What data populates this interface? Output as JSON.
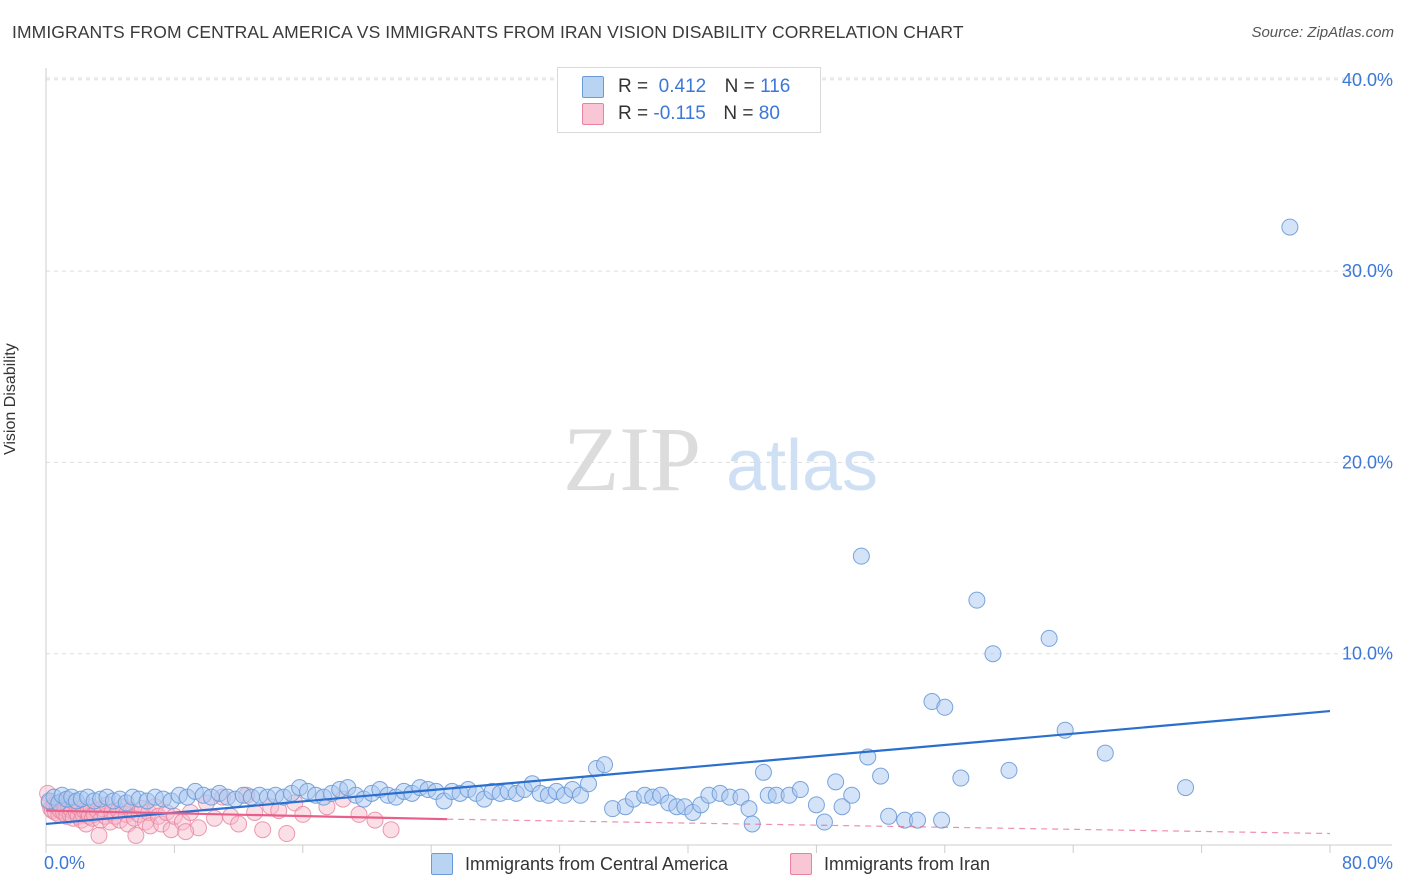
{
  "title": "IMMIGRANTS FROM CENTRAL AMERICA VS IMMIGRANTS FROM IRAN VISION DISABILITY CORRELATION CHART",
  "source": "Source: ZipAtlas.com",
  "watermark": {
    "zip": "ZIP",
    "atlas": "atlas"
  },
  "legend": {
    "r_label": "R =",
    "n_label": "N =",
    "series": [
      {
        "r": "0.412",
        "n": "116"
      },
      {
        "r": "-0.115",
        "n": "80"
      }
    ]
  },
  "colors": {
    "blue_fill": "#a9c8f0",
    "blue_stroke": "#6a9bd8",
    "blue_line": "#2a6fce",
    "pink_fill": "#f7b8ca",
    "pink_stroke": "#e8829f",
    "pink_line": "#e8608a",
    "tick_text": "#3b78d8",
    "grid": "#dddddd"
  },
  "chart_data": {
    "type": "scatter",
    "title": "IMMIGRANTS FROM CENTRAL AMERICA VS IMMIGRANTS FROM IRAN VISION DISABILITY CORRELATION CHART",
    "xlabel": "",
    "ylabel": "Vision Disability",
    "xlim": [
      0,
      80
    ],
    "ylim": [
      0,
      42
    ],
    "x_tick_labels": [
      "0.0%",
      "80.0%"
    ],
    "y_ticks": [
      10,
      20,
      30,
      40
    ],
    "y_tick_labels": [
      "10.0%",
      "20.0%",
      "30.0%",
      "40.0%"
    ],
    "legend_position": "top-center",
    "series": [
      {
        "name": "Immigrants from Central America",
        "r": 0.412,
        "n": 116,
        "trend": {
          "x": [
            0,
            80
          ],
          "y": [
            1.1,
            7.0
          ],
          "dashed_after": null
        },
        "points": [
          [
            0.2,
            2.3
          ],
          [
            0.5,
            2.5
          ],
          [
            0.8,
            2.2
          ],
          [
            1.0,
            2.6
          ],
          [
            1.3,
            2.4
          ],
          [
            1.6,
            2.5
          ],
          [
            1.9,
            2.3
          ],
          [
            2.2,
            2.4
          ],
          [
            2.6,
            2.5
          ],
          [
            3.0,
            2.3
          ],
          [
            3.4,
            2.4
          ],
          [
            3.8,
            2.5
          ],
          [
            4.2,
            2.3
          ],
          [
            4.6,
            2.4
          ],
          [
            5.0,
            2.2
          ],
          [
            5.4,
            2.5
          ],
          [
            5.8,
            2.4
          ],
          [
            6.3,
            2.3
          ],
          [
            6.8,
            2.5
          ],
          [
            7.3,
            2.4
          ],
          [
            7.8,
            2.3
          ],
          [
            8.3,
            2.6
          ],
          [
            8.8,
            2.5
          ],
          [
            9.3,
            2.8
          ],
          [
            9.8,
            2.6
          ],
          [
            10.3,
            2.5
          ],
          [
            10.8,
            2.7
          ],
          [
            11.3,
            2.5
          ],
          [
            11.8,
            2.4
          ],
          [
            12.3,
            2.6
          ],
          [
            12.8,
            2.5
          ],
          [
            13.3,
            2.6
          ],
          [
            13.8,
            2.5
          ],
          [
            14.3,
            2.6
          ],
          [
            14.8,
            2.5
          ],
          [
            15.3,
            2.7
          ],
          [
            15.8,
            3.0
          ],
          [
            16.3,
            2.8
          ],
          [
            16.8,
            2.6
          ],
          [
            17.3,
            2.5
          ],
          [
            17.8,
            2.7
          ],
          [
            18.3,
            2.9
          ],
          [
            18.8,
            3.0
          ],
          [
            19.3,
            2.6
          ],
          [
            19.8,
            2.4
          ],
          [
            20.3,
            2.7
          ],
          [
            20.8,
            2.9
          ],
          [
            21.3,
            2.6
          ],
          [
            21.8,
            2.5
          ],
          [
            22.3,
            2.8
          ],
          [
            22.8,
            2.7
          ],
          [
            23.3,
            3.0
          ],
          [
            23.8,
            2.9
          ],
          [
            24.3,
            2.8
          ],
          [
            24.8,
            2.3
          ],
          [
            25.3,
            2.8
          ],
          [
            25.8,
            2.7
          ],
          [
            26.3,
            2.9
          ],
          [
            26.8,
            2.7
          ],
          [
            27.3,
            2.4
          ],
          [
            27.8,
            2.8
          ],
          [
            28.3,
            2.7
          ],
          [
            28.8,
            2.8
          ],
          [
            29.3,
            2.7
          ],
          [
            29.8,
            2.9
          ],
          [
            30.3,
            3.2
          ],
          [
            30.8,
            2.7
          ],
          [
            31.3,
            2.6
          ],
          [
            31.8,
            2.8
          ],
          [
            32.3,
            2.6
          ],
          [
            32.8,
            2.9
          ],
          [
            33.3,
            2.6
          ],
          [
            33.8,
            3.2
          ],
          [
            34.3,
            4.0
          ],
          [
            34.8,
            4.2
          ],
          [
            35.3,
            1.9
          ],
          [
            36.1,
            2.0
          ],
          [
            36.6,
            2.4
          ],
          [
            37.3,
            2.6
          ],
          [
            37.8,
            2.5
          ],
          [
            38.3,
            2.6
          ],
          [
            38.8,
            2.2
          ],
          [
            39.3,
            2.0
          ],
          [
            39.8,
            2.0
          ],
          [
            40.3,
            1.7
          ],
          [
            40.8,
            2.1
          ],
          [
            41.3,
            2.6
          ],
          [
            42.0,
            2.7
          ],
          [
            42.6,
            2.5
          ],
          [
            43.3,
            2.5
          ],
          [
            43.8,
            1.9
          ],
          [
            44.0,
            1.1
          ],
          [
            44.7,
            3.8
          ],
          [
            45.0,
            2.6
          ],
          [
            45.5,
            2.6
          ],
          [
            46.3,
            2.6
          ],
          [
            47.0,
            2.9
          ],
          [
            48.0,
            2.1
          ],
          [
            48.5,
            1.2
          ],
          [
            49.2,
            3.3
          ],
          [
            49.6,
            2.0
          ],
          [
            50.2,
            2.6
          ],
          [
            50.8,
            15.1
          ],
          [
            51.2,
            4.6
          ],
          [
            52.0,
            3.6
          ],
          [
            52.5,
            1.5
          ],
          [
            53.5,
            1.3
          ],
          [
            54.3,
            1.3
          ],
          [
            55.2,
            7.5
          ],
          [
            56.0,
            7.2
          ],
          [
            57.0,
            3.5
          ],
          [
            58.0,
            12.8
          ],
          [
            59.0,
            10.0
          ],
          [
            60.0,
            3.9
          ],
          [
            62.5,
            10.8
          ],
          [
            63.5,
            6.0
          ],
          [
            66.0,
            4.8
          ],
          [
            71.0,
            3.0
          ],
          [
            77.5,
            32.3
          ],
          [
            55.8,
            1.3
          ]
        ]
      },
      {
        "name": "Immigrants from Iran",
        "r": -0.115,
        "n": 80,
        "trend": {
          "x": [
            0,
            25,
            80
          ],
          "y": [
            1.8,
            1.35,
            0.6
          ],
          "dashed_after": 25
        },
        "points": [
          [
            0.1,
            2.7
          ],
          [
            0.2,
            2.2
          ],
          [
            0.3,
            1.9
          ],
          [
            0.4,
            1.8
          ],
          [
            0.5,
            2.1
          ],
          [
            0.6,
            1.7
          ],
          [
            0.7,
            2.0
          ],
          [
            0.8,
            1.6
          ],
          [
            0.9,
            1.8
          ],
          [
            1.0,
            2.3
          ],
          [
            1.1,
            1.7
          ],
          [
            1.2,
            1.9
          ],
          [
            1.3,
            1.5
          ],
          [
            1.4,
            2.0
          ],
          [
            1.5,
            1.6
          ],
          [
            1.6,
            1.8
          ],
          [
            1.7,
            1.4
          ],
          [
            1.8,
            2.2
          ],
          [
            1.9,
            1.7
          ],
          [
            2.0,
            1.5
          ],
          [
            2.1,
            1.9
          ],
          [
            2.2,
            1.3
          ],
          [
            2.3,
            1.6
          ],
          [
            2.4,
            1.8
          ],
          [
            2.5,
            1.1
          ],
          [
            2.6,
            1.7
          ],
          [
            2.7,
            1.5
          ],
          [
            2.8,
            2.0
          ],
          [
            2.9,
            1.4
          ],
          [
            3.0,
            1.6
          ],
          [
            3.2,
            1.8
          ],
          [
            3.4,
            1.3
          ],
          [
            3.5,
            1.9
          ],
          [
            3.7,
            1.5
          ],
          [
            3.8,
            2.1
          ],
          [
            4.0,
            1.2
          ],
          [
            4.1,
            1.7
          ],
          [
            4.3,
            1.5
          ],
          [
            4.5,
            1.8
          ],
          [
            4.6,
            1.3
          ],
          [
            4.8,
            2.0
          ],
          [
            5.0,
            1.6
          ],
          [
            5.1,
            1.1
          ],
          [
            5.3,
            1.8
          ],
          [
            5.5,
            1.4
          ],
          [
            5.6,
            0.5
          ],
          [
            5.8,
            1.6
          ],
          [
            6.0,
            1.9
          ],
          [
            6.2,
            1.2
          ],
          [
            6.4,
            1.7
          ],
          [
            6.5,
            1.0
          ],
          [
            6.8,
            2.0
          ],
          [
            7.0,
            1.5
          ],
          [
            7.2,
            1.1
          ],
          [
            7.5,
            1.7
          ],
          [
            7.8,
            0.8
          ],
          [
            8.0,
            1.5
          ],
          [
            8.5,
            1.2
          ],
          [
            9.0,
            1.7
          ],
          [
            9.5,
            0.9
          ],
          [
            10.0,
            2.2
          ],
          [
            10.5,
            1.4
          ],
          [
            11.0,
            2.5
          ],
          [
            11.5,
            1.5
          ],
          [
            12.0,
            1.1
          ],
          [
            12.5,
            2.6
          ],
          [
            13.0,
            1.7
          ],
          [
            13.5,
            0.8
          ],
          [
            14.0,
            2.0
          ],
          [
            14.5,
            1.8
          ],
          [
            15.0,
            0.6
          ],
          [
            15.5,
            2.2
          ],
          [
            16.0,
            1.6
          ],
          [
            17.5,
            2.0
          ],
          [
            18.5,
            2.4
          ],
          [
            19.5,
            1.6
          ],
          [
            20.5,
            1.3
          ],
          [
            21.5,
            0.8
          ],
          [
            3.3,
            0.5
          ],
          [
            8.7,
            0.7
          ]
        ]
      }
    ]
  },
  "bottom_legend": [
    "Immigrants from Central America",
    "Immigrants from Iran"
  ]
}
